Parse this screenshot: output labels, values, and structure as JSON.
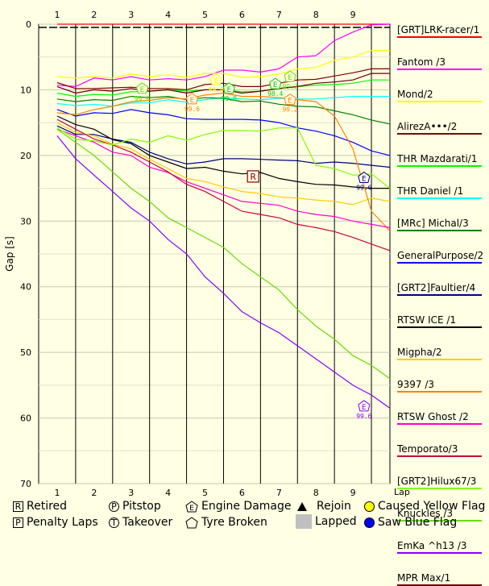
{
  "chart_data": {
    "type": "line",
    "xlabel": "Lap",
    "ylabel": "Gap [s]",
    "x_ticks": [
      "1",
      "2",
      "3",
      "4",
      "5",
      "6",
      "7",
      "8",
      "9"
    ],
    "y_ticks": [
      "0",
      "10",
      "20",
      "30",
      "40",
      "50",
      "60",
      "70"
    ],
    "ylim": [
      0,
      70
    ],
    "y_inverted": true,
    "legend_position": "right",
    "x": [
      1,
      1.5,
      2,
      2.5,
      3,
      3.5,
      4,
      4.5,
      5,
      5.5,
      6,
      6.5,
      7,
      7.5,
      8,
      8.5,
      9,
      9.5,
      10
    ],
    "series": [
      {
        "name": "[GRT]LRK-racer/1",
        "color": "#ff0000",
        "values": [
          0,
          0,
          0,
          0,
          0,
          0,
          0,
          0,
          0,
          0,
          0,
          0,
          0,
          0,
          0,
          0,
          0,
          0,
          0
        ]
      },
      {
        "name": "Fantom /3",
        "color": "#ff00ff",
        "values": [
          9.3,
          9.5,
          8.2,
          8.5,
          8.0,
          8.5,
          8.3,
          8.5,
          8.0,
          7.0,
          7.0,
          7.3,
          6.8,
          5.0,
          4.8,
          2.5,
          1.2,
          0.1,
          0
        ]
      },
      {
        "name": "Mond/2",
        "color": "#ffff00",
        "values": [
          8.0,
          8.2,
          8.0,
          8.2,
          7.6,
          8.0,
          7.7,
          8.1,
          7.5,
          7.5,
          8.1,
          8.0,
          7.6,
          6.8,
          6.6,
          5.5,
          5.0,
          4.0,
          4.0
        ]
      },
      {
        "name": "AlirezA•••/2",
        "color": "#800000",
        "values": [
          8.9,
          9.8,
          9.8,
          9.7,
          9.6,
          9.8,
          9.8,
          10.0,
          9.2,
          9.0,
          9.5,
          9.5,
          9.0,
          8.5,
          8.4,
          7.9,
          7.4,
          6.8,
          6.8
        ]
      },
      {
        "name": "THR Mazdarati/1",
        "color": "#00ff00",
        "values": [
          10.5,
          11.0,
          10.7,
          10.8,
          10.3,
          10.2,
          10.0,
          10.2,
          10.0,
          10.0,
          10.3,
          10.2,
          9.8,
          9.5,
          9.3,
          9.2,
          9.0,
          8.5,
          8.5
        ]
      },
      {
        "name": "THR Daniel /1",
        "color": "#00ffff",
        "values": [
          12.1,
          12.4,
          12.2,
          12.5,
          12.0,
          12.0,
          11.5,
          11.9,
          11.5,
          11.2,
          11.4,
          11.5,
          11.3,
          11.4,
          11.4,
          11.2,
          11.0,
          11.0,
          11.0
        ]
      },
      {
        "name": "[MRc] Michal/3",
        "color": "#008000",
        "values": [
          11.4,
          11.8,
          11.5,
          11.6,
          11.0,
          11.2,
          11.0,
          11.5,
          11.2,
          11.3,
          11.8,
          11.7,
          12.2,
          12.5,
          12.6,
          13.2,
          13.8,
          14.6,
          15.2
        ]
      },
      {
        "name": "GeneralPurpose/2",
        "color": "#0000ff",
        "values": [
          13.0,
          14.0,
          13.5,
          13.6,
          13.0,
          13.5,
          13.8,
          14.4,
          14.5,
          14.5,
          14.5,
          14.6,
          15.0,
          15.8,
          16.3,
          17.0,
          18.0,
          19.3,
          20.0
        ]
      },
      {
        "name": "[GRT2]Faultier/4",
        "color": "#000080",
        "values": [
          15.5,
          16.8,
          16.8,
          17.5,
          18.0,
          19.5,
          20.5,
          21.3,
          21.0,
          20.5,
          20.5,
          20.6,
          20.7,
          20.8,
          21.2,
          21.0,
          21.2,
          21.5,
          21.8
        ]
      },
      {
        "name": "RTSW ICE /1",
        "color": "#000000",
        "values": [
          14.0,
          15.3,
          16.0,
          17.6,
          18.2,
          20.0,
          21.0,
          22.0,
          21.8,
          22.4,
          22.8,
          22.6,
          23.5,
          24.0,
          24.4,
          24.5,
          24.8,
          25.0,
          25.0
        ]
      },
      {
        "name": "Migpha/2",
        "color": "#ffcc00",
        "values": [
          15.0,
          16.5,
          17.0,
          18.3,
          19.0,
          20.6,
          22.0,
          23.5,
          24.0,
          24.8,
          25.5,
          25.8,
          26.3,
          26.5,
          26.8,
          27.0,
          27.5,
          26.5,
          27.0
        ]
      },
      {
        "name": "9397 /3",
        "color": "#ff8000",
        "values": [
          13.5,
          13.8,
          13.0,
          12.5,
          11.8,
          11.6,
          11.2,
          11.4,
          10.8,
          10.5,
          11.0,
          11.0,
          11.2,
          11.5,
          11.8,
          14.0,
          19.0,
          28.5,
          31.5
        ]
      },
      {
        "name": "RTSW Ghost /2",
        "color": "#ff00cc",
        "values": [
          16.0,
          17.0,
          18.0,
          19.5,
          20.0,
          21.8,
          22.6,
          24.0,
          25.0,
          26.0,
          27.0,
          27.3,
          27.6,
          28.5,
          29.0,
          29.3,
          30.0,
          30.5,
          31.0
        ]
      },
      {
        "name": "Temporato/3",
        "color": "#cc0044",
        "values": [
          14.5,
          16.0,
          17.5,
          18.4,
          19.5,
          21.0,
          22.5,
          24.4,
          25.5,
          27.0,
          28.5,
          29.0,
          29.5,
          30.5,
          31.0,
          31.6,
          32.5,
          33.5,
          34.5
        ]
      },
      {
        "name": "[GRT2]Hilux67/3",
        "color": "#80ff00",
        "values": [
          15.8,
          17.5,
          17.8,
          18.4,
          17.5,
          18.0,
          17.0,
          17.7,
          16.8,
          16.2,
          16.2,
          16.3,
          15.8,
          15.8,
          21.5,
          22.0,
          23.0,
          22.8,
          25.0
        ]
      },
      {
        "name": "Knuckles /3",
        "color": "#66dd00",
        "values": [
          16.0,
          18.0,
          20.0,
          22.5,
          25.0,
          27.0,
          29.5,
          31.0,
          32.5,
          34.0,
          36.5,
          38.5,
          40.5,
          43.5,
          46.0,
          48.0,
          50.5,
          52.0,
          54.0
        ]
      },
      {
        "name": "EmKa ^h13 /3",
        "color": "#8800ff",
        "values": [
          17.0,
          20.5,
          23.0,
          25.5,
          28.0,
          30.0,
          32.8,
          35.0,
          38.5,
          41.0,
          43.8,
          45.5,
          47.0,
          49.0,
          51.0,
          53.0,
          55.0,
          56.5,
          58.5
        ]
      },
      {
        "name": "MPR Max/1",
        "color": "#660000",
        "values": [
          9.5,
          10.5,
          10.0,
          10.2,
          9.8,
          10.2,
          10.0,
          10.5,
          10.0,
          10.0,
          10.5,
          10.2,
          9.8,
          9.5,
          9.0,
          8.8,
          8.5,
          7.5,
          7.5
        ]
      }
    ],
    "annotations": [
      {
        "type": "R",
        "x": 6.3,
        "y": 23.2,
        "color": "#800000"
      },
      {
        "type": "E",
        "x": 3.3,
        "y": 9.8,
        "color": "#66dd00",
        "label": "99.0"
      },
      {
        "type": "E",
        "x": 4.65,
        "y": 11.4,
        "color": "#ff8000",
        "label": "99.6"
      },
      {
        "type": "E",
        "x": 5.3,
        "y": 8.5,
        "color": "#ffff00",
        "label": "99.0"
      },
      {
        "type": "E",
        "x": 5.65,
        "y": 9.8,
        "color": "#00cc00",
        "label": "99.0"
      },
      {
        "type": "E",
        "x": 6.9,
        "y": 9.1,
        "color": "#00cc00",
        "label": "98.4"
      },
      {
        "type": "E",
        "x": 7.3,
        "y": 8.0,
        "color": "#66dd00",
        "label": "99.2"
      },
      {
        "type": "E",
        "x": 7.3,
        "y": 11.5,
        "color": "#ff8000",
        "label": "99.2"
      },
      {
        "type": "E",
        "x": 9.3,
        "y": 23.4,
        "color": "#000080",
        "label": "99.6"
      },
      {
        "type": "E",
        "x": 9.3,
        "y": 58.2,
        "color": "#8800ff",
        "label": "99.6"
      }
    ]
  },
  "key": {
    "retired": {
      "symbol": "R",
      "label": "Retired"
    },
    "penalty": {
      "symbol": "P",
      "label": "Penalty Laps"
    },
    "pitstop": {
      "symbol": "P",
      "label": "Pitstop"
    },
    "takeover": {
      "symbol": "T",
      "label": "Takeover"
    },
    "engine": {
      "symbol": "E",
      "label": "Engine Damage"
    },
    "tyre": {
      "symbol": "",
      "label": "Tyre Broken"
    },
    "rejoin": {
      "label": "Rejoin"
    },
    "lapped": {
      "label": "Lapped"
    },
    "yellow": {
      "label": "Caused Yellow Flag",
      "color": "#ffff00"
    },
    "blue": {
      "label": "Saw Blue Flag",
      "color": "#0000ff"
    }
  }
}
